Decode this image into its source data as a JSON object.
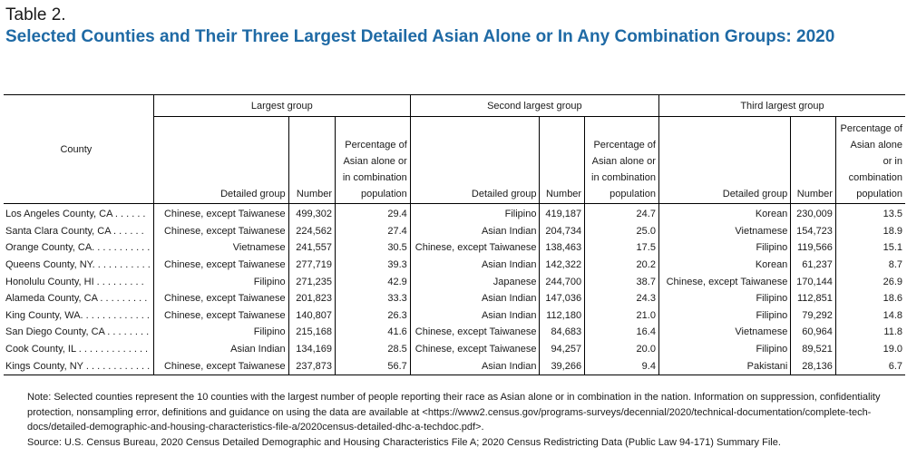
{
  "caption": {
    "label": "Table 2.",
    "title": "Selected Counties and Their Three Largest Detailed Asian Alone or In Any Combination Groups: 2020"
  },
  "table": {
    "county_header": "County",
    "groups": [
      "Largest group",
      "Second largest group",
      "Third largest group"
    ],
    "sub_headers": {
      "detailed_group": "Detailed group",
      "number": "Number",
      "percentage": "Percentage of Asian alone or in combination population"
    },
    "rows": [
      {
        "county": "Los Angeles County, CA . . . . . .",
        "g1": "Chinese, except Taiwanese",
        "n1": "499,302",
        "p1": "29.4",
        "g2": "Filipino",
        "n2": "419,187",
        "p2": "24.7",
        "g3": "Korean",
        "n3": "230,009",
        "p3": "13.5"
      },
      {
        "county": "Santa Clara County, CA . . . . . .",
        "g1": "Chinese, except Taiwanese",
        "n1": "224,562",
        "p1": "27.4",
        "g2": "Asian Indian",
        "n2": "204,734",
        "p2": "25.0",
        "g3": "Vietnamese",
        "n3": "154,723",
        "p3": "18.9"
      },
      {
        "county": "Orange County, CA. . . . . . . . . . .",
        "g1": "Vietnamese",
        "n1": "241,557",
        "p1": "30.5",
        "g2": "Chinese, except Taiwanese",
        "n2": "138,463",
        "p2": "17.5",
        "g3": "Filipino",
        "n3": "119,566",
        "p3": "15.1"
      },
      {
        "county": "Queens County, NY. . . . . . . . . . .",
        "g1": "Chinese, except Taiwanese",
        "n1": "277,719",
        "p1": "39.3",
        "g2": "Asian Indian",
        "n2": "142,322",
        "p2": "20.2",
        "g3": "Korean",
        "n3": "61,237",
        "p3": "8.7"
      },
      {
        "county": "Honolulu County, HI . . . . . . . . .",
        "g1": "Filipino",
        "n1": "271,235",
        "p1": "42.9",
        "g2": "Japanese",
        "n2": "244,700",
        "p2": "38.7",
        "g3": "Chinese, except Taiwanese",
        "n3": "170,144",
        "p3": "26.9"
      },
      {
        "county": "Alameda County, CA . . . . . . . . .",
        "g1": "Chinese, except Taiwanese",
        "n1": "201,823",
        "p1": "33.3",
        "g2": "Asian Indian",
        "n2": "147,036",
        "p2": "24.3",
        "g3": "Filipino",
        "n3": "112,851",
        "p3": "18.6"
      },
      {
        "county": "King County, WA. . . . . . . . . . . . .",
        "g1": "Chinese, except Taiwanese",
        "n1": "140,807",
        "p1": "26.3",
        "g2": "Asian Indian",
        "n2": "112,180",
        "p2": "21.0",
        "g3": "Filipino",
        "n3": "79,292",
        "p3": "14.8"
      },
      {
        "county": "San Diego County, CA . . . . . . . .",
        "g1": "Filipino",
        "n1": "215,168",
        "p1": "41.6",
        "g2": "Chinese, except Taiwanese",
        "n2": "84,683",
        "p2": "16.4",
        "g3": "Vietnamese",
        "n3": "60,964",
        "p3": "11.8"
      },
      {
        "county": "Cook County, IL . . . . . . . . . . . . .",
        "g1": "Asian Indian",
        "n1": "134,169",
        "p1": "28.5",
        "g2": "Chinese, except Taiwanese",
        "n2": "94,257",
        "p2": "20.0",
        "g3": "Filipino",
        "n3": "89,521",
        "p3": "19.0"
      },
      {
        "county": "Kings County, NY . . . . . . . . . . . .",
        "g1": "Chinese, except Taiwanese",
        "n1": "237,873",
        "p1": "56.7",
        "g2": "Asian Indian",
        "n2": "39,266",
        "p2": "9.4",
        "g3": "Pakistani",
        "n3": "28,136",
        "p3": "6.7"
      }
    ]
  },
  "notes": {
    "note": "Note: Selected counties represent the 10 counties with the largest number of people reporting their race as Asian alone or in combination in the nation. Information on suppression, confidentiality protection, nonsampling error, definitions and guidance on using the data are available at <https://www2.census.gov/programs-surveys/decennial/2020/technical-documentation/complete-tech-docs/detailed-demographic-and-housing-characteristics-file-a/2020census-detailed-dhc-a-techdoc.pdf>.",
    "source": "Source: U.S. Census Bureau, 2020 Census Detailed Demographic and Housing Characteristics File A; 2020 Census Redistricting Data (Public Law 94-171) Summary File."
  }
}
